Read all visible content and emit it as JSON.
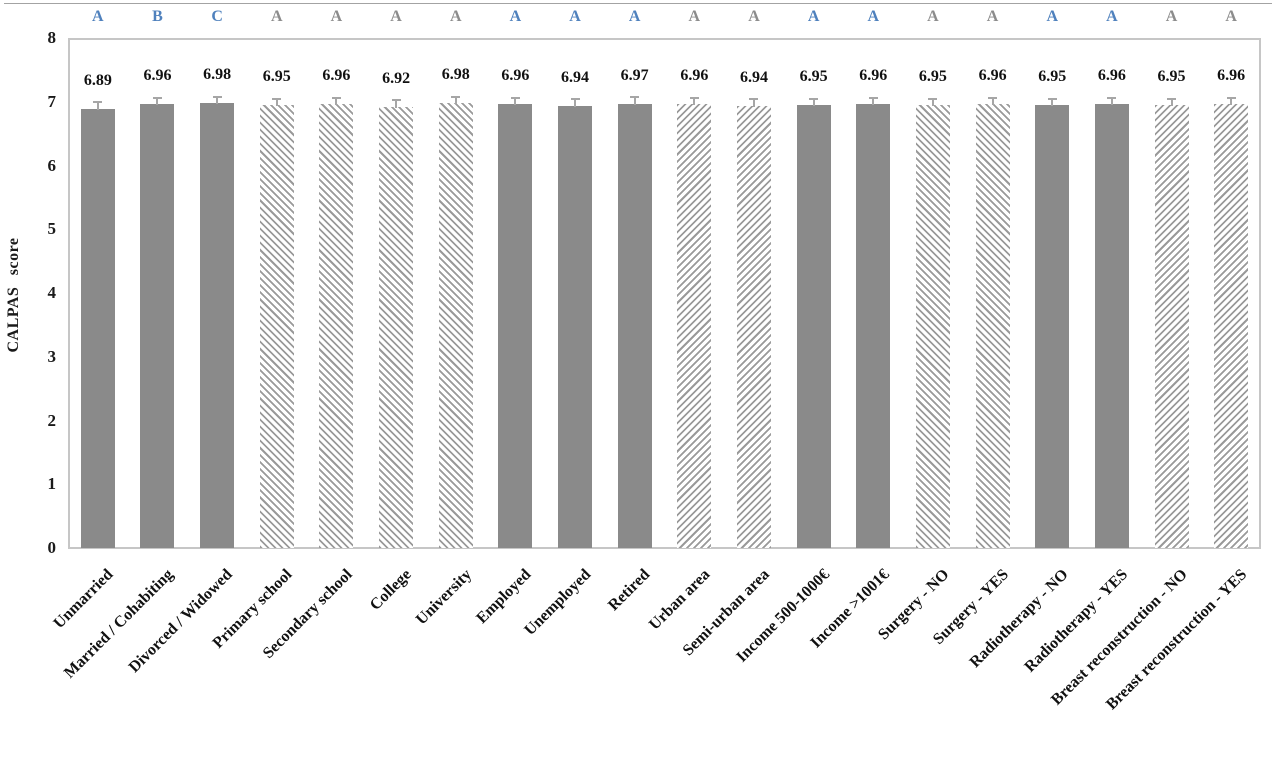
{
  "figure": {
    "kind": "static-figure-bar-chart",
    "background": "#ffffff"
  },
  "chart_data": {
    "type": "bar",
    "title": "",
    "xlabel": "",
    "ylabel": "CALPAS score",
    "ylim": [
      0,
      8
    ],
    "yticks": [
      0,
      1,
      2,
      3,
      4,
      5,
      6,
      7,
      8
    ],
    "grid": false,
    "legend": "none",
    "categories": [
      "Unmarried",
      "Married / Cohabiting",
      "Divorced / Widowed",
      "Primary school",
      "Secondary school",
      "College",
      "University",
      "Employed",
      "Unemployed",
      "Retired",
      "Urban area",
      "Semi-urban area",
      "Income 500-1000€",
      "Income >1001€",
      "Surgery - NO",
      "Surgery - YES",
      "Radiotherapy - NO",
      "Radiotherapy - YES",
      "Breast reconstruction - NO",
      "Breast reconstruction - YES"
    ],
    "values": [
      6.89,
      6.96,
      6.98,
      6.95,
      6.96,
      6.92,
      6.98,
      6.96,
      6.94,
      6.97,
      6.96,
      6.94,
      6.95,
      6.96,
      6.95,
      6.96,
      6.95,
      6.96,
      6.95,
      6.96
    ],
    "value_labels": [
      "6.89",
      "6.96",
      "6.98",
      "6.95",
      "6.96",
      "6.92",
      "6.98",
      "6.96",
      "6.94",
      "6.97",
      "6.96",
      "6.94",
      "6.95",
      "6.96",
      "6.95",
      "6.96",
      "6.95",
      "6.96",
      "6.95",
      "6.96"
    ],
    "significance_letters": [
      {
        "label": "A",
        "tone": "blue"
      },
      {
        "label": "B",
        "tone": "blue"
      },
      {
        "label": "C",
        "tone": "blue"
      },
      {
        "label": "A",
        "tone": "gray"
      },
      {
        "label": "A",
        "tone": "gray"
      },
      {
        "label": "A",
        "tone": "gray"
      },
      {
        "label": "A",
        "tone": "gray"
      },
      {
        "label": "A",
        "tone": "blue"
      },
      {
        "label": "A",
        "tone": "blue"
      },
      {
        "label": "A",
        "tone": "blue"
      },
      {
        "label": "A",
        "tone": "gray"
      },
      {
        "label": "A",
        "tone": "gray"
      },
      {
        "label": "A",
        "tone": "blue"
      },
      {
        "label": "A",
        "tone": "blue"
      },
      {
        "label": "A",
        "tone": "gray"
      },
      {
        "label": "A",
        "tone": "gray"
      },
      {
        "label": "A",
        "tone": "blue"
      },
      {
        "label": "A",
        "tone": "blue"
      },
      {
        "label": "A",
        "tone": "gray"
      },
      {
        "label": "A",
        "tone": "gray"
      }
    ],
    "bar_patterns": [
      "solid",
      "solid",
      "solid",
      "hatch-down",
      "hatch-down",
      "hatch-down",
      "hatch-down",
      "solid",
      "solid",
      "solid",
      "hatch-up",
      "hatch-up",
      "solid",
      "solid",
      "hatch-down",
      "hatch-down",
      "solid",
      "solid",
      "hatch-up",
      "hatch-up"
    ],
    "error_bars": {
      "shown": true,
      "direction": "plus",
      "approx_magnitude": 0.1
    },
    "colors": {
      "bar_solid": "#8a8a8a",
      "hatch_stripe": "#9a9a9a",
      "error_bar": "#a6a6a6",
      "letter_blue": "#4f81bd",
      "letter_gray": "#8c8c8c",
      "plot_border": "#c6c6c6",
      "text": "#111111"
    }
  }
}
